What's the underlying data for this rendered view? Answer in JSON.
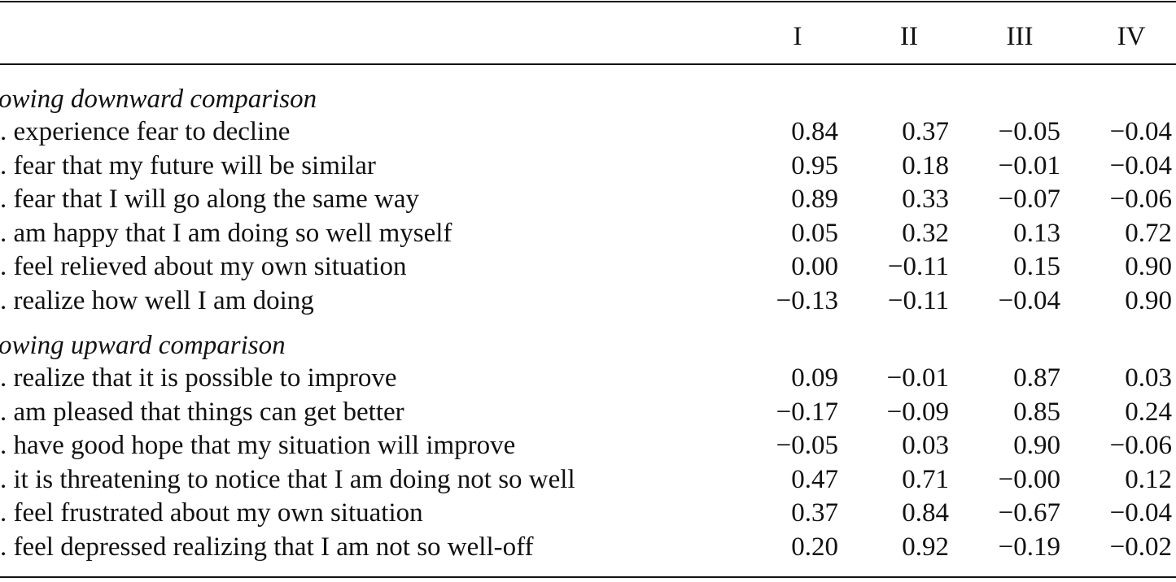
{
  "table": {
    "columns": [
      "I",
      "II",
      "III",
      "IV"
    ],
    "sections": [
      {
        "title": "owing downward comparison",
        "rows": [
          {
            "label": ". experience fear to decline",
            "values": [
              "0.84",
              "0.37",
              "−0.05",
              "−0.04"
            ]
          },
          {
            "label": ". fear that my future will be similar",
            "values": [
              "0.95",
              "0.18",
              "−0.01",
              "−0.04"
            ]
          },
          {
            "label": ". fear that I will go along the same way",
            "values": [
              "0.89",
              "0.33",
              "−0.07",
              "−0.06"
            ]
          },
          {
            "label": ". am happy that I am doing so well myself",
            "values": [
              "0.05",
              "0.32",
              "0.13",
              "0.72"
            ]
          },
          {
            "label": ". feel relieved about my own situation",
            "values": [
              "0.00",
              "−0.11",
              "0.15",
              "0.90"
            ]
          },
          {
            "label": ". realize how well I am doing",
            "values": [
              "−0.13",
              "−0.11",
              "−0.04",
              "0.90"
            ]
          }
        ]
      },
      {
        "title": "owing upward comparison",
        "rows": [
          {
            "label": ". realize that it is possible to improve",
            "values": [
              "0.09",
              "−0.01",
              "0.87",
              "0.03"
            ]
          },
          {
            "label": ". am pleased that things can get better",
            "values": [
              "−0.17",
              "−0.09",
              "0.85",
              "0.24"
            ]
          },
          {
            "label": ". have good hope that my situation will improve",
            "values": [
              "−0.05",
              "0.03",
              "0.90",
              "−0.06"
            ]
          },
          {
            "label": ". it is threatening to notice that I am doing not so well",
            "values": [
              "0.47",
              "0.71",
              "−0.00",
              "0.12"
            ]
          },
          {
            "label": ". feel frustrated about my own situation",
            "values": [
              "0.37",
              "0.84",
              "−0.67",
              "−0.04"
            ]
          },
          {
            "label": ". feel depressed realizing that I am not so well-off",
            "values": [
              "0.20",
              "0.92",
              "−0.19",
              "−0.02"
            ]
          }
        ]
      }
    ]
  }
}
